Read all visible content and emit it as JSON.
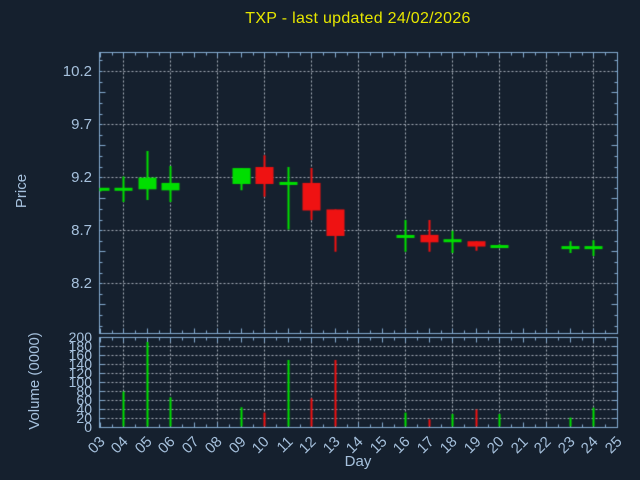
{
  "chart": {
    "title": "TXP - last updated 24/02/2026",
    "price_axis_label": "Price",
    "volume_axis_label": "Volume (0000)",
    "x_axis_label": "Day",
    "colors": {
      "background": "#15202e",
      "frame": "#84abd1",
      "tick_label": "#a6c1dd",
      "grid": "#b9c0ca",
      "title": "#e6e600",
      "up": "#00de00",
      "down": "#ef1212"
    }
  },
  "chart_data": {
    "type": "candlestick-with-volume",
    "title": "TXP - last updated 24/02/2026",
    "xlabel": "Day",
    "ylabel_price": "Price",
    "ylabel_volume": "Volume (0000)",
    "price_ticks": [
      "10.2",
      "9.7",
      "9.2",
      "8.7",
      "8.2"
    ],
    "price_tick_values": [
      10.2,
      9.7,
      9.2,
      8.7,
      8.2
    ],
    "price_ylim": [
      7.73,
      10.38
    ],
    "volume_ticks": [
      "200",
      "180",
      "160",
      "140",
      "120",
      "100",
      "80",
      "60",
      "40",
      "20",
      "0"
    ],
    "volume_tick_values": [
      200,
      180,
      160,
      140,
      120,
      100,
      80,
      60,
      40,
      20,
      0
    ],
    "volume_ylim": [
      0,
      200
    ],
    "x_ticks": [
      "03",
      "04",
      "05",
      "06",
      "07",
      "08",
      "09",
      "10",
      "11",
      "12",
      "13",
      "14",
      "15",
      "16",
      "17",
      "18",
      "19",
      "20",
      "21",
      "22",
      "23",
      "24",
      "25"
    ],
    "xlim": [
      2.96,
      25.0
    ],
    "grid": "dotted; vertical every 2 days, price every 0.5, volume every 20",
    "candles": [
      {
        "day": "03",
        "open": 9.09,
        "high": 9.1,
        "low": 9.07,
        "close": 9.09,
        "direction": "up",
        "volume_0000": 0
      },
      {
        "day": "04",
        "open": 9.09,
        "high": 9.21,
        "low": 8.97,
        "close": 9.09,
        "direction": "up",
        "volume_0000": 80
      },
      {
        "day": "05",
        "open": 9.09,
        "high": 9.45,
        "low": 8.99,
        "close": 9.2,
        "direction": "up",
        "volume_0000": 190
      },
      {
        "day": "06",
        "open": 9.08,
        "high": 9.31,
        "low": 8.97,
        "close": 9.15,
        "direction": "up",
        "volume_0000": 67
      },
      {
        "day": "09",
        "open": 9.14,
        "high": 9.29,
        "low": 9.08,
        "close": 9.29,
        "direction": "up",
        "volume_0000": 45
      },
      {
        "day": "10",
        "open": 9.3,
        "high": 9.41,
        "low": 9.02,
        "close": 9.14,
        "direction": "down",
        "volume_0000": 33
      },
      {
        "day": "11",
        "open": 9.14,
        "high": 9.3,
        "low": 8.71,
        "close": 9.15,
        "direction": "up",
        "volume_0000": 150
      },
      {
        "day": "12",
        "open": 9.15,
        "high": 9.29,
        "low": 8.8,
        "close": 8.89,
        "direction": "down",
        "volume_0000": 65
      },
      {
        "day": "13",
        "open": 8.9,
        "high": 8.9,
        "low": 8.5,
        "close": 8.65,
        "direction": "down",
        "volume_0000": 150
      },
      {
        "day": "16",
        "open": 8.64,
        "high": 8.8,
        "low": 8.5,
        "close": 8.65,
        "direction": "up",
        "volume_0000": 33
      },
      {
        "day": "17",
        "open": 8.66,
        "high": 8.8,
        "low": 8.5,
        "close": 8.59,
        "direction": "down",
        "volume_0000": 18
      },
      {
        "day": "18",
        "open": 8.6,
        "high": 8.7,
        "low": 8.49,
        "close": 8.61,
        "direction": "up",
        "volume_0000": 30
      },
      {
        "day": "19",
        "open": 8.6,
        "high": 8.6,
        "low": 8.51,
        "close": 8.55,
        "direction": "down",
        "volume_0000": 40
      },
      {
        "day": "20",
        "open": 8.55,
        "high": 8.57,
        "low": 8.54,
        "close": 8.55,
        "direction": "up",
        "volume_0000": 30
      },
      {
        "day": "23",
        "open": 8.54,
        "high": 8.6,
        "low": 8.49,
        "close": 8.54,
        "direction": "up",
        "volume_0000": 22
      },
      {
        "day": "24",
        "open": 8.54,
        "high": 8.61,
        "low": 8.46,
        "close": 8.54,
        "direction": "up",
        "volume_0000": 44
      }
    ]
  }
}
